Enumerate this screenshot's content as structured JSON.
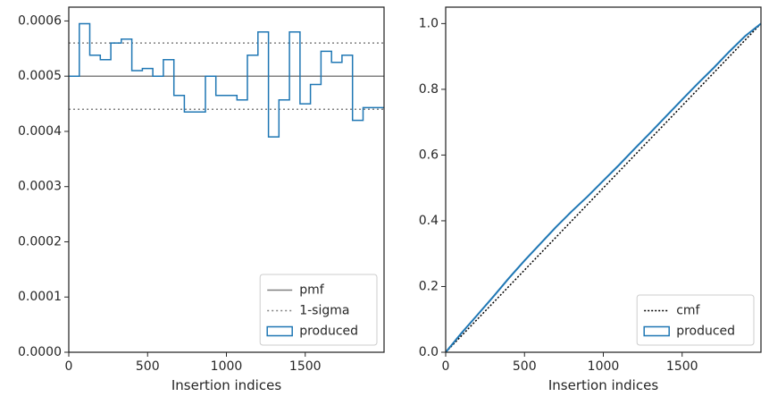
{
  "chart_data": [
    {
      "type": "step",
      "title": "",
      "xlabel": "Insertion indices",
      "ylabel": "",
      "xlim": [
        0,
        2000
      ],
      "ylim": [
        0,
        0.000625
      ],
      "xticks": [
        0,
        500,
        1000,
        1500
      ],
      "xtick_labels": [
        "0",
        "500",
        "1000",
        "1500"
      ],
      "yticks": [
        0,
        0.0001,
        0.0002,
        0.0003,
        0.0004,
        0.0005,
        0.0006
      ],
      "ytick_labels": [
        "0.0000",
        "0.0001",
        "0.0002",
        "0.0003",
        "0.0004",
        "0.0005",
        "0.0006"
      ],
      "grid": false,
      "legend": {
        "position": "lower-right",
        "entries": [
          "pmf",
          "1-sigma",
          "produced"
        ]
      },
      "series": [
        {
          "name": "pmf",
          "style": "solid",
          "color": "#808080",
          "y": 0.0005
        },
        {
          "name": "1-sigma",
          "style": "dotted",
          "color": "#808080",
          "y": [
            0.00056,
            0.00044
          ]
        },
        {
          "name": "produced",
          "style": "step",
          "color": "#1f77b4",
          "bin_width": 66.67,
          "values": [
            0.0005,
            0.000595,
            0.000538,
            0.00053,
            0.00056,
            0.000567,
            0.00051,
            0.000514,
            0.0005,
            0.00053,
            0.000465,
            0.000435,
            0.000435,
            0.0005,
            0.000465,
            0.000465,
            0.000457,
            0.000538,
            0.00058,
            0.00039,
            0.000457,
            0.00058,
            0.00045,
            0.000485,
            0.000545,
            0.000525,
            0.000538,
            0.00042,
            0.000443,
            0.000443
          ]
        }
      ]
    },
    {
      "type": "line",
      "title": "",
      "xlabel": "Insertion indices",
      "ylabel": "",
      "xlim": [
        0,
        2000
      ],
      "ylim": [
        0,
        1.05
      ],
      "xticks": [
        0,
        500,
        1000,
        1500
      ],
      "xtick_labels": [
        "0",
        "500",
        "1000",
        "1500"
      ],
      "yticks": [
        0,
        0.2,
        0.4,
        0.6,
        0.8,
        1.0
      ],
      "ytick_labels": [
        "0.0",
        "0.2",
        "0.4",
        "0.6",
        "0.8",
        "1.0"
      ],
      "grid": false,
      "legend": {
        "position": "lower-right",
        "entries": [
          "cmf",
          "produced"
        ]
      },
      "series": [
        {
          "name": "cmf",
          "style": "dotted",
          "color": "#000000",
          "x": [
            0,
            2000
          ],
          "y": [
            0,
            1.0
          ]
        },
        {
          "name": "produced",
          "style": "solid",
          "color": "#1f77b4",
          "x": [
            0,
            100,
            200,
            300,
            400,
            500,
            600,
            700,
            800,
            900,
            1000,
            1100,
            1200,
            1300,
            1400,
            1500,
            1600,
            1700,
            1800,
            1900,
            2000
          ],
          "y": [
            0,
            0.058,
            0.113,
            0.168,
            0.225,
            0.279,
            0.33,
            0.381,
            0.429,
            0.474,
            0.522,
            0.57,
            0.62,
            0.669,
            0.719,
            0.769,
            0.818,
            0.865,
            0.915,
            0.962,
            1.0
          ]
        }
      ]
    }
  ]
}
